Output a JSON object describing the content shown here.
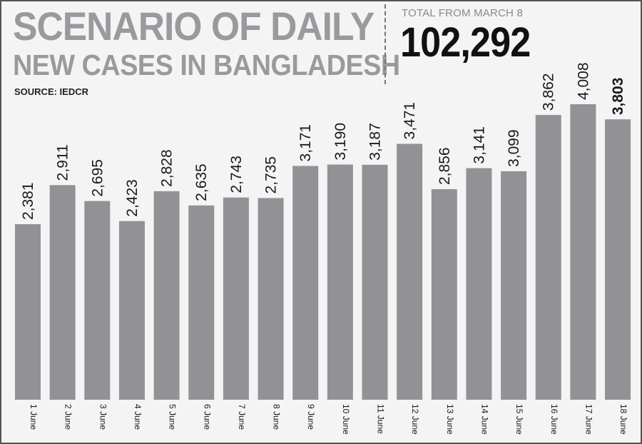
{
  "header": {
    "title_line1": "SCENARIO OF DAILY",
    "title_line2": "NEW CASES IN BANGLADESH",
    "source": "SOURCE: IEDCR",
    "total_label": "TOTAL FROM MARCH 8",
    "total_value": "102,292"
  },
  "colors": {
    "bar": "#929296",
    "title": "#9a9a9e",
    "text": "#1a1a1a"
  },
  "chart_data": {
    "type": "bar",
    "title": "SCENARIO OF DAILY NEW CASES IN BANGLADESH",
    "categories": [
      "1 June",
      "2 June",
      "3 June",
      "4 June",
      "5 June",
      "6 June",
      "7 June",
      "8 June",
      "9 June",
      "10 June",
      "11 June",
      "12 June",
      "13 June",
      "14 June",
      "15 June",
      "16 June",
      "17 June",
      "18 June"
    ],
    "values": [
      2381,
      2911,
      2695,
      2423,
      2828,
      2635,
      2743,
      2735,
      3171,
      3190,
      3187,
      3471,
      2856,
      3141,
      3099,
      3862,
      4008,
      3803
    ],
    "value_labels": [
      "2,381",
      "2,911",
      "2,695",
      "2,423",
      "2,828",
      "2,635",
      "2,743",
      "2,735",
      "3,171",
      "3,190",
      "3,187",
      "3,471",
      "2,856",
      "3,141",
      "3,099",
      "3,862",
      "4,008",
      "3,803"
    ],
    "highlighted_index": 17,
    "xlabel": "",
    "ylabel": "",
    "ylim": [
      0,
      4008
    ],
    "grid": false,
    "legend": "none"
  }
}
